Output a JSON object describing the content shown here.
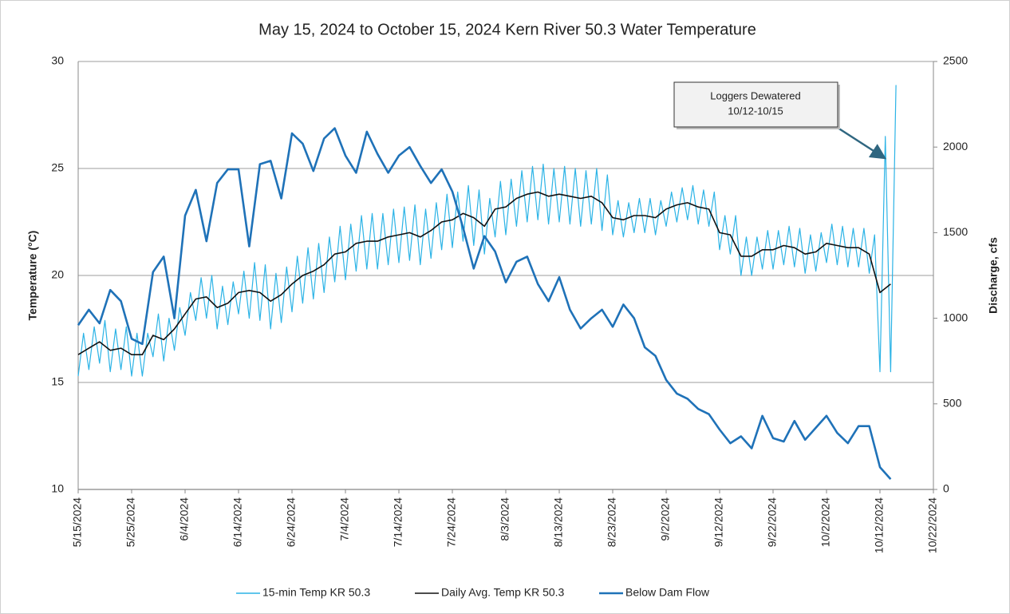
{
  "chart_data": {
    "type": "line",
    "title": "May 15, 2024 to October 15, 2024 Kern River 50.3  Water Temperature",
    "y_label": "Temperature (°C)",
    "y2_label": "Discharge, cfs",
    "annotation": [
      "Loggers Dewatered",
      "10/12-10/15"
    ],
    "x": [
      "5/15/2024",
      "5/17/2024",
      "5/19/2024",
      "5/21/2024",
      "5/23/2024",
      "5/25/2024",
      "5/27/2024",
      "5/29/2024",
      "5/31/2024",
      "6/2/2024",
      "6/4/2024",
      "6/6/2024",
      "6/8/2024",
      "6/10/2024",
      "6/12/2024",
      "6/14/2024",
      "6/16/2024",
      "6/18/2024",
      "6/20/2024",
      "6/22/2024",
      "6/24/2024",
      "6/26/2024",
      "6/28/2024",
      "6/30/2024",
      "7/2/2024",
      "7/4/2024",
      "7/6/2024",
      "7/8/2024",
      "7/10/2024",
      "7/12/2024",
      "7/14/2024",
      "7/16/2024",
      "7/18/2024",
      "7/20/2024",
      "7/22/2024",
      "7/24/2024",
      "7/26/2024",
      "7/28/2024",
      "7/30/2024",
      "8/1/2024",
      "8/3/2024",
      "8/5/2024",
      "8/7/2024",
      "8/9/2024",
      "8/11/2024",
      "8/13/2024",
      "8/15/2024",
      "8/17/2024",
      "8/19/2024",
      "8/21/2024",
      "8/23/2024",
      "8/25/2024",
      "8/27/2024",
      "8/29/2024",
      "8/31/2024",
      "9/2/2024",
      "9/4/2024",
      "9/6/2024",
      "9/8/2024",
      "9/10/2024",
      "9/12/2024",
      "9/14/2024",
      "9/16/2024",
      "9/18/2024",
      "9/20/2024",
      "9/22/2024",
      "9/24/2024",
      "9/26/2024",
      "9/28/2024",
      "9/30/2024",
      "10/2/2024",
      "10/4/2024",
      "10/6/2024",
      "10/8/2024",
      "10/10/2024",
      "10/12/2024",
      "10/14/2024"
    ],
    "series": [
      {
        "name": "15-min Temp KR 50.3",
        "color": "#2bb3e6",
        "width": 1.2,
        "values": [
          [
            15.3,
            17.3
          ],
          [
            15.6,
            17.6
          ],
          [
            15.9,
            17.9
          ],
          [
            15.5,
            17.5
          ],
          [
            15.6,
            17.6
          ],
          [
            15.3,
            17.3
          ],
          [
            15.3,
            17.3
          ],
          [
            16.2,
            18.2
          ],
          [
            16.0,
            18.0
          ],
          [
            16.5,
            18.5
          ],
          [
            17.2,
            19.2
          ],
          [
            17.9,
            19.9
          ],
          [
            18.0,
            20.0
          ],
          [
            17.5,
            19.5
          ],
          [
            17.7,
            19.7
          ],
          [
            18.2,
            20.2
          ],
          [
            18.0,
            20.6
          ],
          [
            17.9,
            20.5
          ],
          [
            17.5,
            20.1
          ],
          [
            17.8,
            20.4
          ],
          [
            18.3,
            20.9
          ],
          [
            18.7,
            21.3
          ],
          [
            18.9,
            21.5
          ],
          [
            19.2,
            21.8
          ],
          [
            19.7,
            22.3
          ],
          [
            19.8,
            22.4
          ],
          [
            20.2,
            22.8
          ],
          [
            20.3,
            22.9
          ],
          [
            20.3,
            22.9
          ],
          [
            20.5,
            23.1
          ],
          [
            20.6,
            23.2
          ],
          [
            20.7,
            23.3
          ],
          [
            20.5,
            23.1
          ],
          [
            20.8,
            23.4
          ],
          [
            21.2,
            23.8
          ],
          [
            21.3,
            23.9
          ],
          [
            21.6,
            24.2
          ],
          [
            21.4,
            24.0
          ],
          [
            21.0,
            23.6
          ],
          [
            21.8,
            24.4
          ],
          [
            21.9,
            24.5
          ],
          [
            22.3,
            24.9
          ],
          [
            22.5,
            25.1
          ],
          [
            22.6,
            25.2
          ],
          [
            22.4,
            25.0
          ],
          [
            22.5,
            25.1
          ],
          [
            22.4,
            25.0
          ],
          [
            22.3,
            24.9
          ],
          [
            22.4,
            25.0
          ],
          [
            22.1,
            24.7
          ],
          [
            21.9,
            23.5
          ],
          [
            21.8,
            23.4
          ],
          [
            22.0,
            23.6
          ],
          [
            22.0,
            23.6
          ],
          [
            21.9,
            23.5
          ],
          [
            22.3,
            23.9
          ],
          [
            22.5,
            24.1
          ],
          [
            22.6,
            24.2
          ],
          [
            22.4,
            24.0
          ],
          [
            22.3,
            23.9
          ],
          [
            21.2,
            22.8
          ],
          [
            21.0,
            22.8
          ],
          [
            20.0,
            21.8
          ],
          [
            20.0,
            21.8
          ],
          [
            20.3,
            22.1
          ],
          [
            20.3,
            22.1
          ],
          [
            20.5,
            22.3
          ],
          [
            20.4,
            22.2
          ],
          [
            20.1,
            21.9
          ],
          [
            20.2,
            22.0
          ],
          [
            20.6,
            22.4
          ],
          [
            20.5,
            22.3
          ],
          [
            20.4,
            22.2
          ],
          [
            20.4,
            22.2
          ],
          [
            20.1,
            21.9
          ],
          [
            15.5,
            26.5
          ],
          [
            15.5,
            28.9
          ]
        ]
      },
      {
        "name": "Daily Avg. Temp KR 50.3",
        "color": "#111111",
        "width": 1.6,
        "values": [
          16.3,
          16.6,
          16.9,
          16.5,
          16.6,
          16.3,
          16.3,
          17.2,
          17.0,
          17.5,
          18.2,
          18.9,
          19.0,
          18.5,
          18.7,
          19.2,
          19.3,
          19.2,
          18.8,
          19.1,
          19.6,
          20.0,
          20.2,
          20.5,
          21.0,
          21.1,
          21.5,
          21.6,
          21.6,
          21.8,
          21.9,
          22.0,
          21.8,
          22.1,
          22.5,
          22.6,
          22.9,
          22.7,
          22.3,
          23.1,
          23.2,
          23.6,
          23.8,
          23.9,
          23.7,
          23.8,
          23.7,
          23.6,
          23.7,
          23.4,
          22.7,
          22.6,
          22.8,
          22.8,
          22.7,
          23.1,
          23.3,
          23.4,
          23.2,
          23.1,
          22.0,
          21.9,
          20.9,
          20.9,
          21.2,
          21.2,
          21.4,
          21.3,
          21.0,
          21.1,
          21.5,
          21.4,
          21.3,
          21.3,
          21.0,
          19.2,
          19.6
        ]
      },
      {
        "name": "Below Dam Flow",
        "color": "#1f72b8",
        "width": 2.6,
        "axis": "y2",
        "values": [
          960,
          1050,
          970,
          1165,
          1100,
          880,
          850,
          1270,
          1360,
          1000,
          1600,
          1750,
          1450,
          1790,
          1870,
          1870,
          1420,
          1900,
          1920,
          1700,
          2080,
          2020,
          1860,
          2050,
          2110,
          1950,
          1850,
          2090,
          1960,
          1850,
          1950,
          2000,
          1890,
          1790,
          1870,
          1740,
          1530,
          1290,
          1480,
          1390,
          1210,
          1330,
          1360,
          1200,
          1100,
          1240,
          1050,
          940,
          1000,
          1050,
          950,
          1080,
          1000,
          830,
          780,
          640,
          560,
          530,
          470,
          440,
          350,
          270,
          310,
          240,
          430,
          300,
          280,
          400,
          290,
          360,
          430,
          330,
          270,
          370,
          370,
          130,
          60
        ]
      }
    ],
    "xlim": [
      "5/15/2024",
      "10/22/2024"
    ],
    "xticks": [
      "5/15/2024",
      "5/25/2024",
      "6/4/2024",
      "6/14/2024",
      "6/24/2024",
      "7/4/2024",
      "7/14/2024",
      "7/24/2024",
      "8/3/2024",
      "8/13/2024",
      "8/23/2024",
      "9/2/2024",
      "9/12/2024",
      "9/22/2024",
      "10/2/2024",
      "10/12/2024",
      "10/22/2024"
    ],
    "ylim": [
      10,
      30
    ],
    "yticks": [
      10,
      15,
      20,
      25,
      30
    ],
    "y2lim": [
      0,
      2500
    ],
    "y2ticks": [
      0,
      500,
      1000,
      1500,
      2000,
      2500
    ],
    "grid": true,
    "legend": "bottom"
  }
}
